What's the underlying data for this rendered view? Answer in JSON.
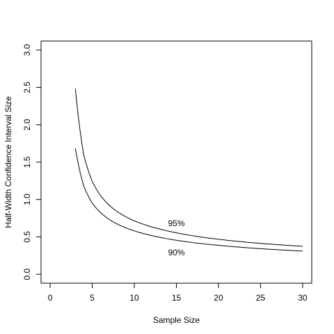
{
  "chart_data": {
    "type": "line",
    "xlabel": "Sample Size",
    "ylabel": "Half-Width Confidence Interval Size",
    "xlim": [
      -1.08,
      31.08
    ],
    "ylim": [
      -0.12,
      3.12
    ],
    "xticks": [
      0,
      5,
      10,
      15,
      20,
      25,
      30
    ],
    "yticks": [
      "0.0",
      "0.5",
      "1.0",
      "1.5",
      "2.0",
      "2.5",
      "3.0"
    ],
    "grid": false,
    "series": [
      {
        "name": "95%",
        "x": [
          3,
          4,
          5,
          6,
          7,
          8,
          9,
          10,
          12,
          14,
          16,
          18,
          20,
          22,
          25,
          28,
          30
        ],
        "y": [
          2.484,
          1.591,
          1.241,
          1.05,
          0.925,
          0.836,
          0.769,
          0.715,
          0.635,
          0.578,
          0.533,
          0.497,
          0.468,
          0.443,
          0.413,
          0.388,
          0.373
        ],
        "label_position": {
          "x": 15,
          "y": 0.68
        }
      },
      {
        "name": "90%",
        "x": [
          3,
          4,
          5,
          6,
          7,
          8,
          9,
          10,
          12,
          14,
          16,
          18,
          20,
          22,
          25,
          28,
          30
        ],
        "y": [
          1.686,
          1.177,
          0.953,
          0.823,
          0.734,
          0.67,
          0.62,
          0.58,
          0.519,
          0.473,
          0.438,
          0.409,
          0.387,
          0.367,
          0.342,
          0.322,
          0.31
        ],
        "label_position": {
          "x": 15,
          "y": 0.29
        }
      }
    ]
  }
}
